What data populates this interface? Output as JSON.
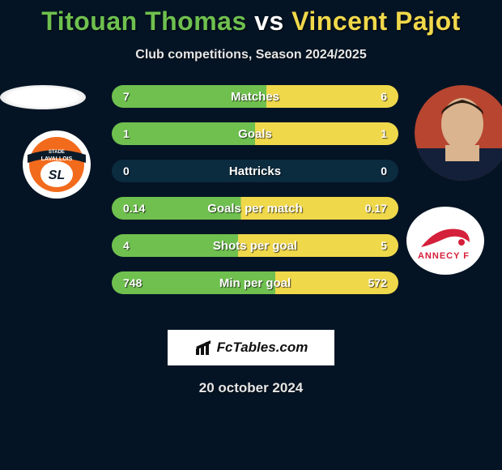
{
  "title": {
    "player1": "Titouan Thomas",
    "vs": " vs ",
    "player2": "Vincent Pajot",
    "player1_color": "#6fc04f",
    "player2_color": "#f0d84b",
    "vs_color": "#ffffff"
  },
  "subtitle": "Club competitions, Season 2024/2025",
  "background_color": "#041424",
  "stats": {
    "bar_bg": "#0b2b3f",
    "left_fill": "#6fc04f",
    "right_fill": "#f0d84b",
    "rows": [
      {
        "label": "Matches",
        "left": "7",
        "right": "6",
        "left_pct": 54,
        "right_pct": 46
      },
      {
        "label": "Goals",
        "left": "1",
        "right": "1",
        "left_pct": 50,
        "right_pct": 50
      },
      {
        "label": "Hattricks",
        "left": "0",
        "right": "0",
        "left_pct": 0,
        "right_pct": 0
      },
      {
        "label": "Goals per match",
        "left": "0.14",
        "right": "0.17",
        "left_pct": 45,
        "right_pct": 55
      },
      {
        "label": "Shots per goal",
        "left": "4",
        "right": "5",
        "left_pct": 44,
        "right_pct": 56
      },
      {
        "label": "Min per goal",
        "left": "748",
        "right": "572",
        "left_pct": 57,
        "right_pct": 43
      }
    ]
  },
  "left_side": {
    "avatar_name": "titouan-thomas-avatar",
    "team_name": "stade-lavallois-badge",
    "team_label_top": "STADE",
    "team_label_mid": "LAVALLOIS",
    "team_badge_bg": "#ffffff",
    "team_badge_inner": "#f26b1d",
    "team_badge_ribbon": "#0b1b2a",
    "team_badge_text": "SL"
  },
  "right_side": {
    "avatar_name": "vincent-pajot-avatar",
    "team_name": "annecy-fc-badge",
    "team_badge_bg": "#ffffff",
    "team_badge_accent": "#d4203a",
    "team_badge_text": "ANNECY F"
  },
  "branding": {
    "label": "FcTables.com",
    "bg": "#ffffff",
    "text_color": "#111111",
    "icon_color": "#111111"
  },
  "date": "20 october 2024"
}
